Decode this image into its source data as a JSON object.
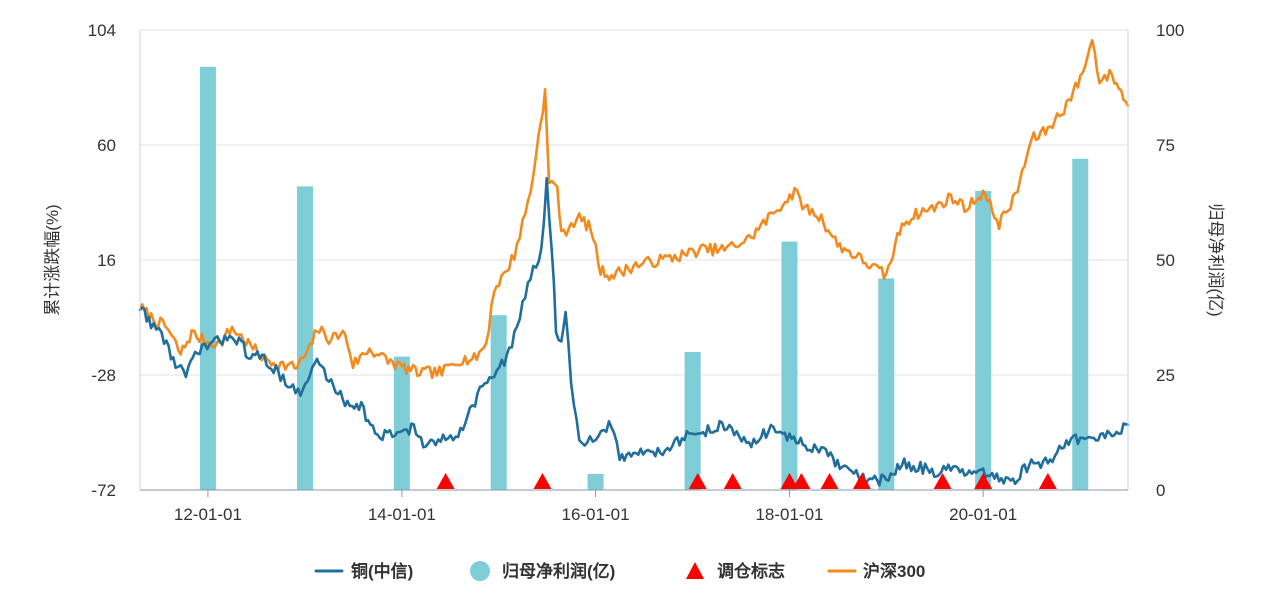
{
  "chart_data": {
    "type": "line",
    "title": "",
    "y_left_label": "累计涨跌幅(%)",
    "y_right_label": "归母净利润(亿)",
    "y_left_range": [
      -72,
      104
    ],
    "y_left_ticks": [
      "104",
      "60",
      "16",
      "-28",
      "-72"
    ],
    "y_right_range": [
      0,
      100
    ],
    "y_right_ticks": [
      "100",
      "75",
      "50",
      "25",
      "0"
    ],
    "x_range": [
      "2011-04-20",
      "2021-06-30"
    ],
    "x_ticks": [
      {
        "label": "12-01-01",
        "date": "2012-01-01"
      },
      {
        "label": "14-01-01",
        "date": "2014-01-01"
      },
      {
        "label": "16-01-01",
        "date": "2016-01-01"
      },
      {
        "label": "18-01-01",
        "date": "2018-01-01"
      },
      {
        "label": "20-01-01",
        "date": "2020-01-01"
      }
    ],
    "grid": "horizontal",
    "legend_position": "bottom",
    "series": [
      {
        "name": "铜(中信)",
        "kind": "line",
        "axis": "left",
        "color": "#1f6e9c",
        "points": [
          [
            "2011-04-20",
            -2
          ],
          [
            "2011-06-01",
            -8
          ],
          [
            "2011-07-20",
            -14
          ],
          [
            "2011-09-01",
            -24
          ],
          [
            "2011-10-10",
            -28
          ],
          [
            "2011-12-01",
            -18
          ],
          [
            "2012-02-15",
            -15
          ],
          [
            "2012-04-01",
            -12
          ],
          [
            "2012-06-01",
            -20
          ],
          [
            "2012-08-01",
            -22
          ],
          [
            "2012-10-01",
            -28
          ],
          [
            "2012-12-15",
            -36
          ],
          [
            "2013-02-15",
            -22
          ],
          [
            "2013-04-01",
            -30
          ],
          [
            "2013-06-01",
            -38
          ],
          [
            "2013-08-01",
            -40
          ],
          [
            "2013-10-01",
            -52
          ],
          [
            "2013-12-15",
            -50
          ],
          [
            "2014-02-15",
            -48
          ],
          [
            "2014-04-01",
            -56
          ],
          [
            "2014-06-15",
            -52
          ],
          [
            "2014-08-01",
            -50
          ],
          [
            "2014-09-15",
            -42
          ],
          [
            "2014-11-01",
            -32
          ],
          [
            "2014-12-15",
            -28
          ],
          [
            "2015-02-01",
            -22
          ],
          [
            "2015-03-01",
            -12
          ],
          [
            "2015-04-01",
            -2
          ],
          [
            "2015-05-01",
            10
          ],
          [
            "2015-06-01",
            15
          ],
          [
            "2015-06-20",
            30
          ],
          [
            "2015-07-01",
            48
          ],
          [
            "2015-07-20",
            20
          ],
          [
            "2015-08-05",
            -10
          ],
          [
            "2015-08-25",
            -15
          ],
          [
            "2015-09-10",
            -5
          ],
          [
            "2015-10-01",
            -30
          ],
          [
            "2015-11-01",
            -55
          ],
          [
            "2015-12-01",
            -52
          ],
          [
            "2016-01-01",
            -54
          ],
          [
            "2016-02-01",
            -50
          ],
          [
            "2016-03-01",
            -46
          ],
          [
            "2016-04-01",
            -60
          ],
          [
            "2016-06-01",
            -58
          ],
          [
            "2016-09-01",
            -57
          ],
          [
            "2016-12-01",
            -52
          ],
          [
            "2017-02-01",
            -50
          ],
          [
            "2017-05-01",
            -47
          ],
          [
            "2017-08-01",
            -55
          ],
          [
            "2017-11-01",
            -48
          ],
          [
            "2018-01-01",
            -52
          ],
          [
            "2018-03-01",
            -55
          ],
          [
            "2018-05-01",
            -57
          ],
          [
            "2018-07-01",
            -62
          ],
          [
            "2018-09-01",
            -66
          ],
          [
            "2018-11-01",
            -69
          ],
          [
            "2019-01-01",
            -68
          ],
          [
            "2019-03-01",
            -62
          ],
          [
            "2019-05-01",
            -63
          ],
          [
            "2019-07-01",
            -65
          ],
          [
            "2019-09-01",
            -64
          ],
          [
            "2019-11-01",
            -66
          ],
          [
            "2020-01-01",
            -66
          ],
          [
            "2020-03-01",
            -68
          ],
          [
            "2020-05-01",
            -68
          ],
          [
            "2020-07-01",
            -61
          ],
          [
            "2020-09-01",
            -62
          ],
          [
            "2020-11-01",
            -54
          ],
          [
            "2021-01-01",
            -52
          ],
          [
            "2021-03-01",
            -53
          ],
          [
            "2021-05-01",
            -50
          ],
          [
            "2021-06-30",
            -47
          ]
        ]
      },
      {
        "name": "沪深300",
        "kind": "line",
        "axis": "left",
        "color": "#f28a1e",
        "points": [
          [
            "2011-04-20",
            -2
          ],
          [
            "2011-06-01",
            -6
          ],
          [
            "2011-08-01",
            -10
          ],
          [
            "2011-09-20",
            -20
          ],
          [
            "2011-11-01",
            -12
          ],
          [
            "2011-12-20",
            -15
          ],
          [
            "2012-02-15",
            -16
          ],
          [
            "2012-04-01",
            -10
          ],
          [
            "2012-06-01",
            -16
          ],
          [
            "2012-08-01",
            -22
          ],
          [
            "2012-10-01",
            -24
          ],
          [
            "2012-12-01",
            -25
          ],
          [
            "2013-01-20",
            -18
          ],
          [
            "2013-02-15",
            -10
          ],
          [
            "2013-04-01",
            -14
          ],
          [
            "2013-06-01",
            -12
          ],
          [
            "2013-07-01",
            -24
          ],
          [
            "2013-09-01",
            -18
          ],
          [
            "2013-11-01",
            -22
          ],
          [
            "2014-01-01",
            -25
          ],
          [
            "2014-03-01",
            -27
          ],
          [
            "2014-06-01",
            -27
          ],
          [
            "2014-08-01",
            -22
          ],
          [
            "2014-10-01",
            -22
          ],
          [
            "2014-11-15",
            -16
          ],
          [
            "2014-12-15",
            5
          ],
          [
            "2015-01-20",
            10
          ],
          [
            "2015-03-01",
            18
          ],
          [
            "2015-04-01",
            30
          ],
          [
            "2015-05-01",
            42
          ],
          [
            "2015-06-10",
            70
          ],
          [
            "2015-06-25",
            80
          ],
          [
            "2015-07-10",
            45
          ],
          [
            "2015-08-10",
            45
          ],
          [
            "2015-08-25",
            25
          ],
          [
            "2015-10-01",
            30
          ],
          [
            "2015-11-01",
            32
          ],
          [
            "2015-12-15",
            28
          ],
          [
            "2016-01-20",
            12
          ],
          [
            "2016-03-01",
            10
          ],
          [
            "2016-06-01",
            14
          ],
          [
            "2016-09-01",
            16
          ],
          [
            "2016-12-01",
            18
          ],
          [
            "2017-02-01",
            20
          ],
          [
            "2017-05-01",
            20
          ],
          [
            "2017-08-01",
            24
          ],
          [
            "2017-11-01",
            34
          ],
          [
            "2018-01-20",
            42
          ],
          [
            "2018-03-01",
            36
          ],
          [
            "2018-05-01",
            32
          ],
          [
            "2018-07-01",
            22
          ],
          [
            "2018-09-01",
            18
          ],
          [
            "2018-11-01",
            14
          ],
          [
            "2019-01-01",
            10
          ],
          [
            "2019-03-01",
            30
          ],
          [
            "2019-05-01",
            34
          ],
          [
            "2019-07-01",
            36
          ],
          [
            "2019-09-01",
            40
          ],
          [
            "2019-11-01",
            36
          ],
          [
            "2020-01-01",
            42
          ],
          [
            "2020-03-01",
            30
          ],
          [
            "2020-05-01",
            40
          ],
          [
            "2020-07-01",
            62
          ],
          [
            "2020-09-01",
            66
          ],
          [
            "2020-11-01",
            74
          ],
          [
            "2021-01-01",
            85
          ],
          [
            "2021-02-15",
            100
          ],
          [
            "2021-03-15",
            85
          ],
          [
            "2021-05-01",
            87
          ],
          [
            "2021-06-30",
            75
          ]
        ]
      }
    ],
    "bars": {
      "name": "归母净利润(亿)",
      "axis": "right",
      "color": "#7fcdd6",
      "points": [
        [
          "2012-01-01",
          92
        ],
        [
          "2013-01-01",
          66
        ],
        [
          "2014-01-01",
          29
        ],
        [
          "2015-01-01",
          38
        ],
        [
          "2016-01-01",
          3.5
        ],
        [
          "2017-01-01",
          30
        ],
        [
          "2018-01-01",
          54
        ],
        [
          "2019-01-01",
          46
        ],
        [
          "2020-01-01",
          65
        ],
        [
          "2021-01-01",
          72
        ]
      ]
    },
    "markers": {
      "name": "调仓标志",
      "color": "#ff0000",
      "dates": [
        "2014-06-15",
        "2015-06-15",
        "2017-01-20",
        "2017-06-01",
        "2018-01-01",
        "2018-02-15",
        "2018-06-01",
        "2018-10-01",
        "2019-08-01",
        "2020-01-01",
        "2020-09-01"
      ]
    },
    "legend": [
      {
        "name": "铜(中信)",
        "symbol": "line",
        "color": "#1f6e9c"
      },
      {
        "name": "归母净利润(亿)",
        "symbol": "circle",
        "color": "#7fcdd6"
      },
      {
        "name": "调仓标志",
        "symbol": "triangle",
        "color": "#ff0000"
      },
      {
        "name": "沪深300",
        "symbol": "line",
        "color": "#f28a1e"
      }
    ]
  }
}
